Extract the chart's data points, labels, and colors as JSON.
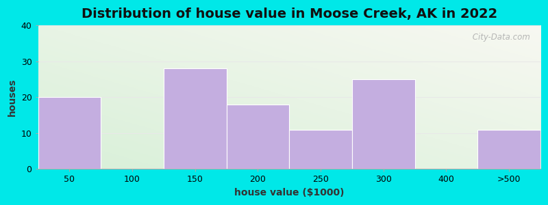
{
  "title": "Distribution of house value in Moose Creek, AK in 2022",
  "xlabel": "house value ($1000)",
  "ylabel": "houses",
  "categories": [
    "50",
    "100",
    "150",
    "200",
    "250",
    "300",
    "400",
    ">500"
  ],
  "values": [
    20,
    0,
    28,
    18,
    11,
    25,
    0,
    11
  ],
  "bar_color": "#c4aee0",
  "bar_edgecolor": "#c4aee0",
  "ylim": [
    0,
    40
  ],
  "yticks": [
    0,
    10,
    20,
    30,
    40
  ],
  "bg_outer": "#00e8e8",
  "bg_plot_top_right": "#f8f8f2",
  "bg_plot_bottom_left": "#d8f0d8",
  "grid_color": "#e8e8e8",
  "title_fontsize": 14,
  "axis_label_fontsize": 10,
  "tick_fontsize": 9,
  "watermark": " City-Data.com"
}
